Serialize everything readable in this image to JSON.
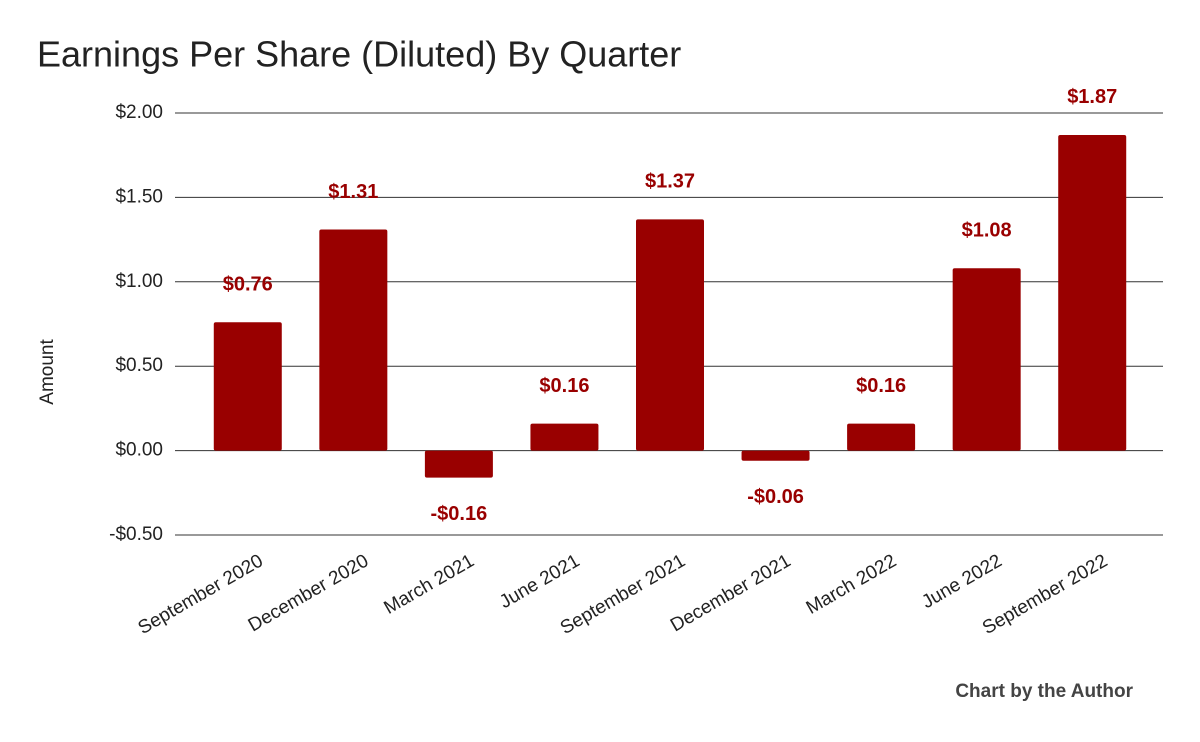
{
  "chart_data": {
    "type": "bar",
    "title": "Earnings Per Share (Diluted) By Quarter",
    "y_label": "Amount",
    "footer": "Chart by the Author",
    "categories": [
      "September 2020",
      "December 2020",
      "March 2021",
      "June 2021",
      "September 2021",
      "December 2021",
      "March 2022",
      "June 2022",
      "September 2022"
    ],
    "values": [
      0.76,
      1.31,
      -0.16,
      0.16,
      1.37,
      -0.06,
      0.16,
      1.08,
      1.87
    ],
    "value_labels": [
      "$0.76",
      "$1.31",
      "-$0.16",
      "$0.16",
      "$1.37",
      "-$0.06",
      "$0.16",
      "$1.08",
      "$1.87"
    ],
    "color": "#990000",
    "ylim": [
      -0.5,
      2
    ],
    "yticks": [
      {
        "value": -0.5,
        "label": "-$0.50"
      },
      {
        "value": 0,
        "label": "$0.00"
      },
      {
        "value": 0.5,
        "label": "$0.50"
      },
      {
        "value": 1,
        "label": "$1.00"
      },
      {
        "value": 1.5,
        "label": "$1.50"
      },
      {
        "value": 2,
        "label": "$2.00"
      }
    ],
    "grid": true
  }
}
